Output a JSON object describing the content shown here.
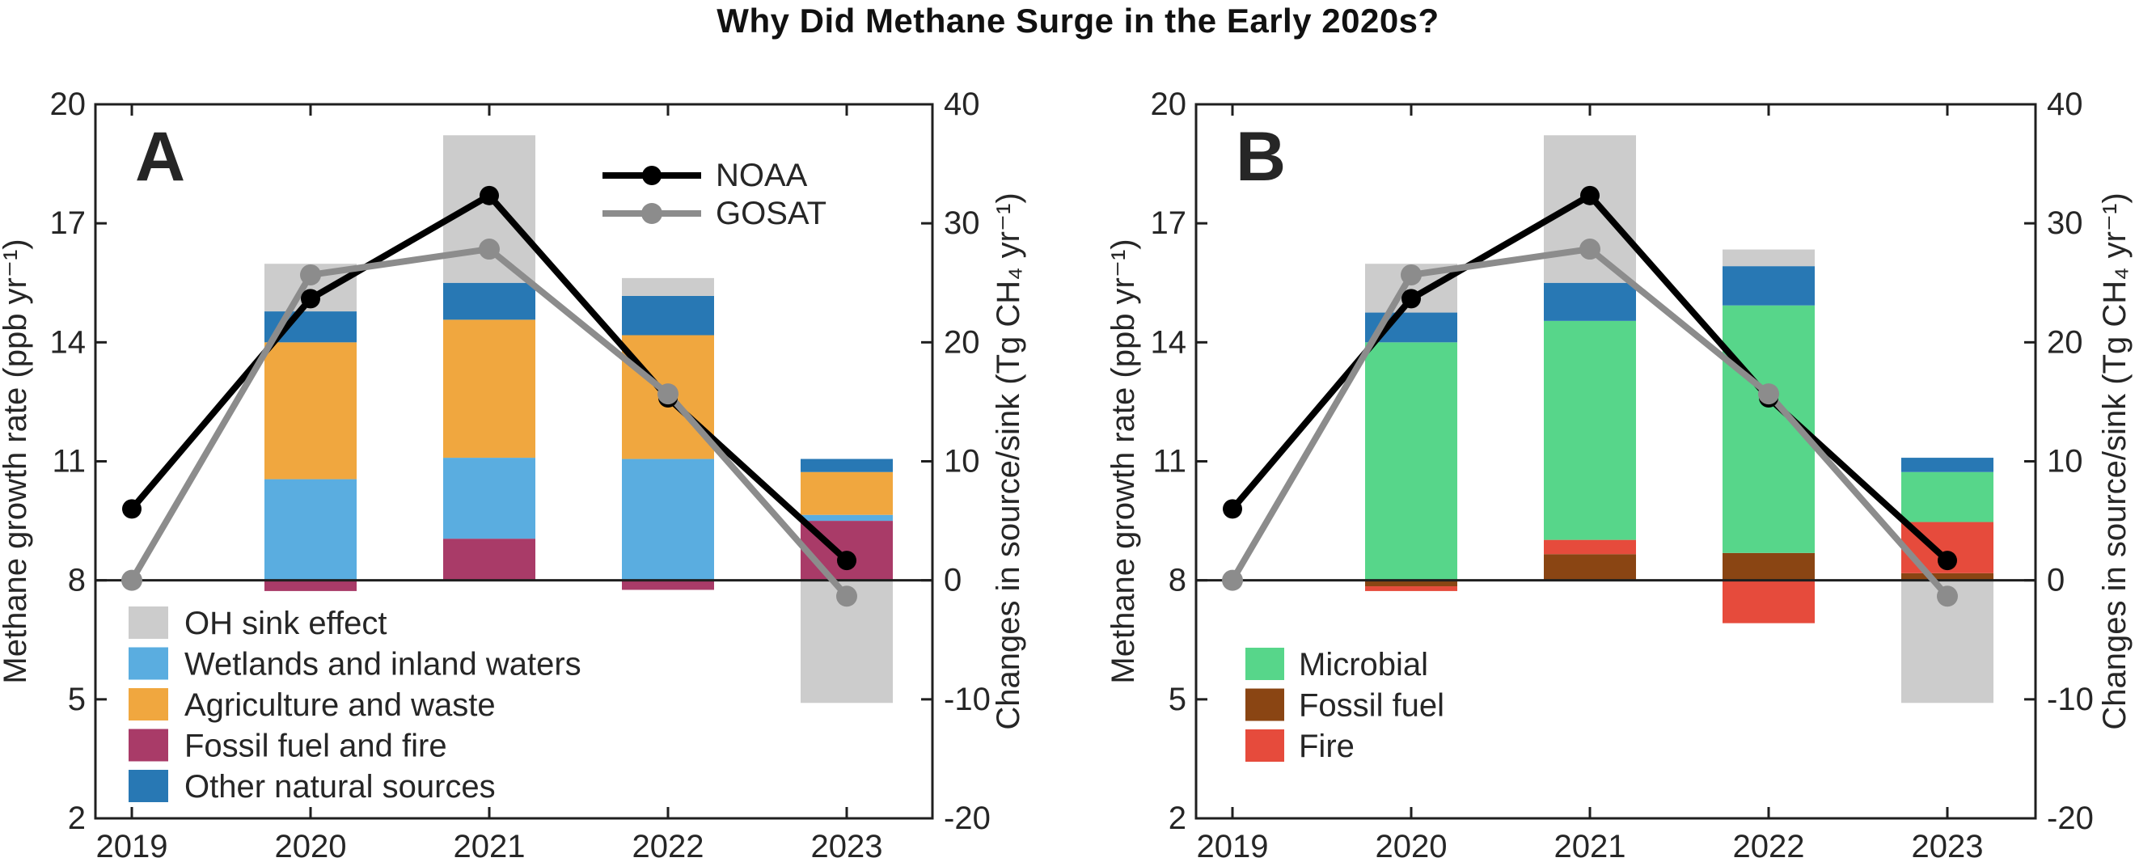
{
  "title": "Why Did Methane Surge in the Early 2020s?",
  "colors": {
    "oh_sink": "#cccccc",
    "wetlands": "#5aade0",
    "agriculture": "#f0a73f",
    "fossil_fuel_and_fire": "#a93b68",
    "other_natural": "#2878b4",
    "microbial": "#57d68a",
    "fossil_fuel": "#8a4513",
    "fire": "#e64b3c",
    "noaa_line": "#000000",
    "gosat_line": "#8c8c8c",
    "axis": "#1f1f1f"
  },
  "chart_data": [
    {
      "type": "bar",
      "subtype": "stacked-bar-with-lines",
      "panel_label": "A",
      "years": [
        "2019",
        "2020",
        "2021",
        "2022",
        "2023"
      ],
      "bar_years": [
        "2020",
        "2021",
        "2022",
        "2023"
      ],
      "left_axis": {
        "label": "Methane growth rate (ppb yr⁻¹)",
        "ticks": [
          20,
          17,
          14,
          11,
          8,
          5,
          2
        ],
        "range": [
          2,
          20
        ]
      },
      "right_axis": {
        "label": "Changes in source/sink (Tg CH₄ yr⁻¹)",
        "ticks": [
          40,
          30,
          20,
          10,
          0,
          -10,
          -20
        ],
        "range": [
          -20,
          40
        ]
      },
      "grid": false,
      "bar_unit": "Tg CH4 yr-1",
      "bar_series": [
        {
          "name": "Fossil fuel and fire",
          "color": "#a93b68",
          "values": [
            -0.9,
            3.5,
            -0.8,
            5.0
          ]
        },
        {
          "name": "Wetlands and inland waters",
          "color": "#5aade0",
          "values": [
            8.5,
            6.8,
            10.2,
            0.5
          ]
        },
        {
          "name": "Agriculture and waste",
          "color": "#f0a73f",
          "values": [
            11.5,
            11.6,
            10.4,
            3.6
          ]
        },
        {
          "name": "Other natural sources",
          "color": "#2878b4",
          "values": [
            2.6,
            3.1,
            3.3,
            1.1
          ]
        },
        {
          "name": "OH sink effect",
          "color": "#cccccc",
          "values": [
            4.0,
            12.4,
            1.5,
            -10.3
          ]
        }
      ],
      "line_series": [
        {
          "name": "NOAA",
          "color": "#000000",
          "marker_radius": 12,
          "values_ppb": [
            9.8,
            15.1,
            17.7,
            12.6,
            8.5
          ]
        },
        {
          "name": "GOSAT",
          "color": "#8c8c8c",
          "marker_radius": 13,
          "values_ppb": [
            8.0,
            15.7,
            16.35,
            12.7,
            7.6
          ]
        }
      ],
      "line_legend": [
        "NOAA",
        "GOSAT"
      ],
      "bar_legend": [
        "OH sink effect",
        "Wetlands and inland waters",
        "Agriculture and waste",
        "Fossil fuel and fire",
        "Other natural sources"
      ]
    },
    {
      "type": "bar",
      "subtype": "stacked-bar-with-lines",
      "panel_label": "B",
      "years": [
        "2019",
        "2020",
        "2021",
        "2022",
        "2023"
      ],
      "bar_years": [
        "2020",
        "2021",
        "2022",
        "2023"
      ],
      "left_axis": {
        "label": "Methane growth rate (ppb yr⁻¹)",
        "ticks": [
          20,
          17,
          14,
          11,
          8,
          5,
          2
        ],
        "range": [
          2,
          20
        ]
      },
      "right_axis": {
        "label": "Changes in source/sink (Tg CH₄ yr⁻¹)",
        "ticks": [
          40,
          30,
          20,
          10,
          0,
          -10,
          -20
        ],
        "range": [
          -20,
          40
        ]
      },
      "grid": false,
      "bar_unit": "Tg CH4 yr-1",
      "bar_series": [
        {
          "name": "Fossil fuel",
          "color": "#8a4513",
          "values": [
            -0.5,
            2.2,
            2.3,
            0.6
          ]
        },
        {
          "name": "Fire",
          "color": "#e64b3c",
          "values": [
            -0.4,
            1.2,
            -3.6,
            4.3
          ]
        },
        {
          "name": "Microbial",
          "color": "#57d68a",
          "values": [
            20.0,
            18.4,
            20.8,
            4.2
          ]
        },
        {
          "name": "Other natural sources",
          "color": "#2878b4",
          "values": [
            2.5,
            3.2,
            3.3,
            1.2
          ]
        },
        {
          "name": "OH sink effect",
          "color": "#cccccc",
          "values": [
            4.1,
            12.4,
            1.4,
            -10.3
          ]
        }
      ],
      "line_series": [
        {
          "name": "NOAA",
          "color": "#000000",
          "marker_radius": 12,
          "values_ppb": [
            9.8,
            15.1,
            17.7,
            12.6,
            8.5
          ]
        },
        {
          "name": "GOSAT",
          "color": "#8c8c8c",
          "marker_radius": 13,
          "values_ppb": [
            8.0,
            15.7,
            16.35,
            12.7,
            7.6
          ]
        }
      ],
      "line_legend": [],
      "bar_legend": [
        "Microbial",
        "Fossil fuel",
        "Fire"
      ]
    }
  ]
}
